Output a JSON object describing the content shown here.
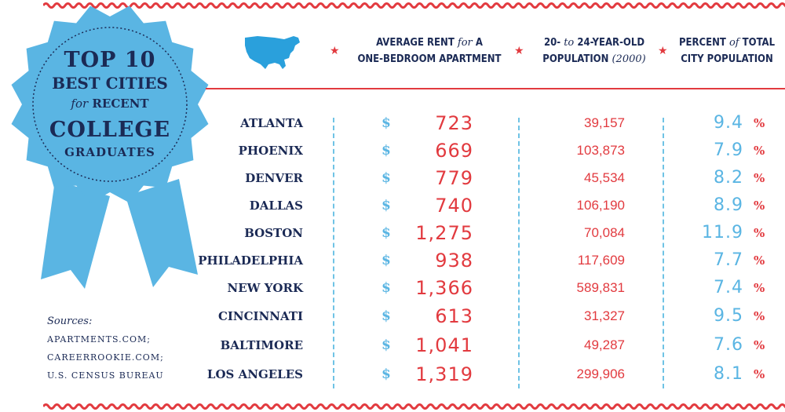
{
  "badge": {
    "line1": "TOP 10",
    "line2": "BEST CITIES",
    "line3_italic": "for",
    "line3_rest": "RECENT",
    "line4": "COLLEGE",
    "line5": "GRADUATES"
  },
  "columns": {
    "rent_a": "AVERAGE RENT",
    "rent_for": "for",
    "rent_b": "A",
    "rent_c": "ONE-BEDROOM APARTMENT",
    "pop_a": "20-",
    "pop_to": "to",
    "pop_b": "24-YEAR-OLD",
    "pop_c": "POPULATION",
    "pop_year": "(2000)",
    "pct_a": "PERCENT",
    "pct_of": "of",
    "pct_b": "TOTAL",
    "pct_c": "CITY POPULATION"
  },
  "symbols": {
    "star": "★",
    "dollar": "$",
    "percent": "%"
  },
  "rows": [
    {
      "city": "ATLANTA",
      "rent": "723",
      "pop": "39,157",
      "pct": "9.4"
    },
    {
      "city": "PHOENIX",
      "rent": "669",
      "pop": "103,873",
      "pct": "7.9"
    },
    {
      "city": "DENVER",
      "rent": "779",
      "pop": "45,534",
      "pct": "8.2"
    },
    {
      "city": "DALLAS",
      "rent": "740",
      "pop": "106,190",
      "pct": "8.9"
    },
    {
      "city": "BOSTON",
      "rent": "1,275",
      "pop": "70,084",
      "pct": "11.9"
    },
    {
      "city": "PHILADELPHIA",
      "rent": "938",
      "pop": "117,609",
      "pct": "7.7"
    },
    {
      "city": "NEW YORK",
      "rent": "1,366",
      "pop": "589,831",
      "pct": "7.4"
    },
    {
      "city": "CINCINNATI",
      "rent": "613",
      "pop": "31,327",
      "pct": "9.5"
    },
    {
      "city": "BALTIMORE",
      "rent": "1,041",
      "pop": "49,287",
      "pct": "7.6"
    },
    {
      "city": "LOS ANGELES",
      "rent": "1,319",
      "pop": "299,906",
      "pct": "8.1"
    }
  ],
  "sources": {
    "title": "Sources:",
    "items": [
      "APARTMENTS.COM;",
      "CAREERROOKIE.COM;",
      "U.S. CENSUS BUREAU"
    ]
  },
  "colors": {
    "red": "#e23a3f",
    "blue": "#5ab5e3",
    "navy": "#1b2a55"
  },
  "icons": {
    "map": "usa-map-icon",
    "ribbon": "award-ribbon-icon"
  }
}
